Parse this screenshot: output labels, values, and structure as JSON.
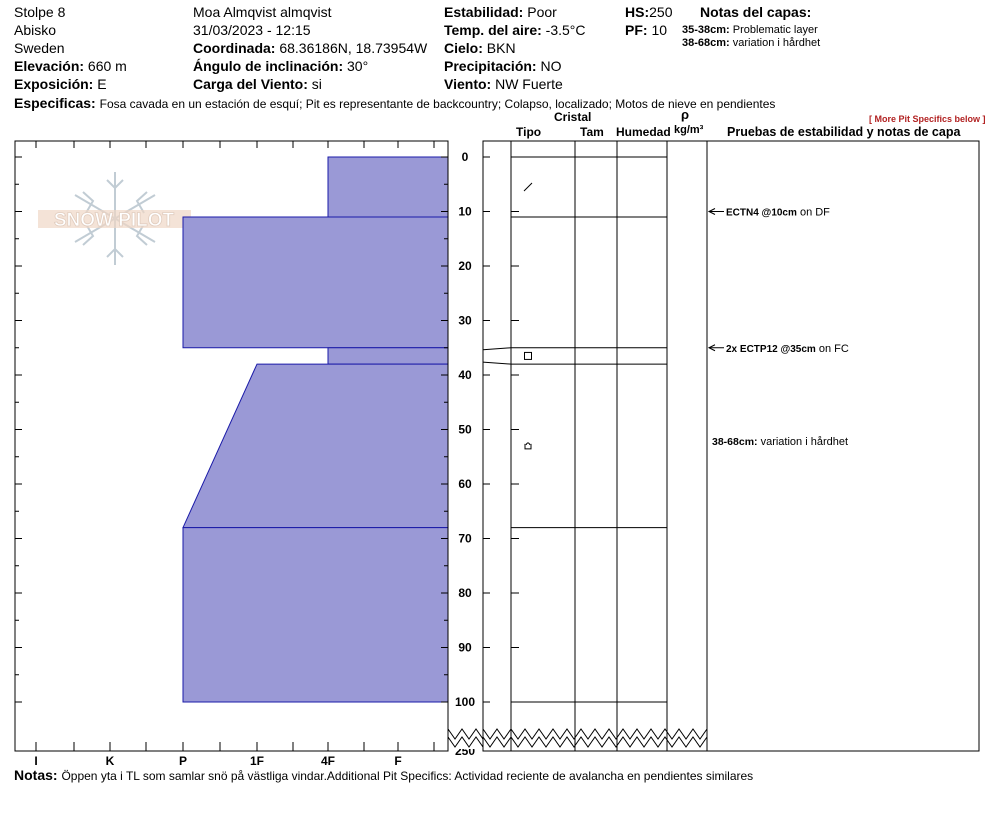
{
  "header": {
    "pit_name": "Stolpe 8",
    "location": "Abisko",
    "country": "Sweden",
    "elevation_label": "Elevación:",
    "elevation_value": "660 m",
    "aspect_label": "Exposición:",
    "aspect_value": "E",
    "observer": "Moa Almqvist almqvist",
    "datetime": "31/03/2023 - 12:15",
    "coord_label": "Coordinada:",
    "coord_value": "68.36186N, 18.73954W",
    "slope_label": "Ángulo de inclinación:",
    "slope_value": "30°",
    "wind_load_label": "Carga del Viento:",
    "wind_load_value": "si",
    "stability_label": "Estabilidad:",
    "stability_value": "Poor",
    "air_temp_label": "Temp. del aire:",
    "air_temp_value": "-3.5°C",
    "sky_label": "Cielo:",
    "sky_value": "BKN",
    "precip_label": "Precipitación:",
    "precip_value": "NO",
    "wind_label": "Viento:",
    "wind_value": "NW Fuerte",
    "hs_label": "HS:",
    "hs_value": "250",
    "pf_label": "PF:",
    "pf_value": "10",
    "layer_notes_title": "Notas del capas:",
    "layer_notes": [
      {
        "range": "35-38cm:",
        "text": "Problematic layer"
      },
      {
        "range": "38-68cm:",
        "text": "variation i hårdhet"
      }
    ],
    "specifics_label": "Especificas:",
    "specifics_value": "Fosa cavada en un estación de esquí; Pit es representante de backcountry; Colapso, localizado; Motos de nieve en pendientes"
  },
  "more_link": "[ More Pit Specifics below ]",
  "columns": {
    "crystal": "Cristal",
    "type": "Tipo",
    "size": "Tam",
    "moisture": "Humedad",
    "rho": "ρ",
    "density_unit": "kg/m³",
    "tests_title": "Pruebas de estabilidad y notas de capa"
  },
  "logo_text": "SNOW PILOT",
  "notes_label": "Notas:",
  "notes_value": "Öppen yta i TL som samlar snö på västliga vindar.Additional Pit Specifics: Actividad reciente de avalancha en pendientes similares",
  "colors": {
    "profile_fill": "#9a99d6",
    "profile_stroke": "#1a1aa8",
    "link": "#b22222"
  },
  "chart_data": {
    "type": "area",
    "title": "",
    "xlabel": "",
    "ylabel": "",
    "x_axis_labels": [
      "I",
      "K",
      "P",
      "1F",
      "4F",
      "F"
    ],
    "y_ticks": [
      0,
      10,
      20,
      30,
      40,
      50,
      60,
      70,
      80,
      90,
      100,
      250
    ],
    "y_axis_break": [
      100,
      250
    ],
    "hardness_profile": [
      {
        "top": 0,
        "bottom": 11,
        "hardness": "4F"
      },
      {
        "top": 11,
        "bottom": 35,
        "hardness": "P"
      },
      {
        "top": 35,
        "bottom": 38,
        "hardness": "4F"
      },
      {
        "top": 38,
        "bottom": 68,
        "hardness_top": "1F",
        "hardness_bottom": "P"
      },
      {
        "top": 68,
        "bottom": 100,
        "hardness": "P"
      }
    ],
    "layer_boundaries": [
      0,
      11,
      35,
      38,
      68,
      100
    ],
    "test_results": [
      {
        "depth": 10,
        "label": "ECTN4 @10cm",
        "note": "on DF"
      },
      {
        "depth": 35,
        "label": "2x ECTP12 @35cm",
        "note": "on FC"
      }
    ],
    "layer_comment": {
      "depth": 53,
      "range": "38-68cm:",
      "text": "variation i hårdhet"
    },
    "grain_symbols": [
      {
        "depth": 5.5,
        "symbol": "slash"
      },
      {
        "depth": 36.5,
        "symbol": "square"
      },
      {
        "depth": 53,
        "symbol": "cup"
      }
    ]
  }
}
